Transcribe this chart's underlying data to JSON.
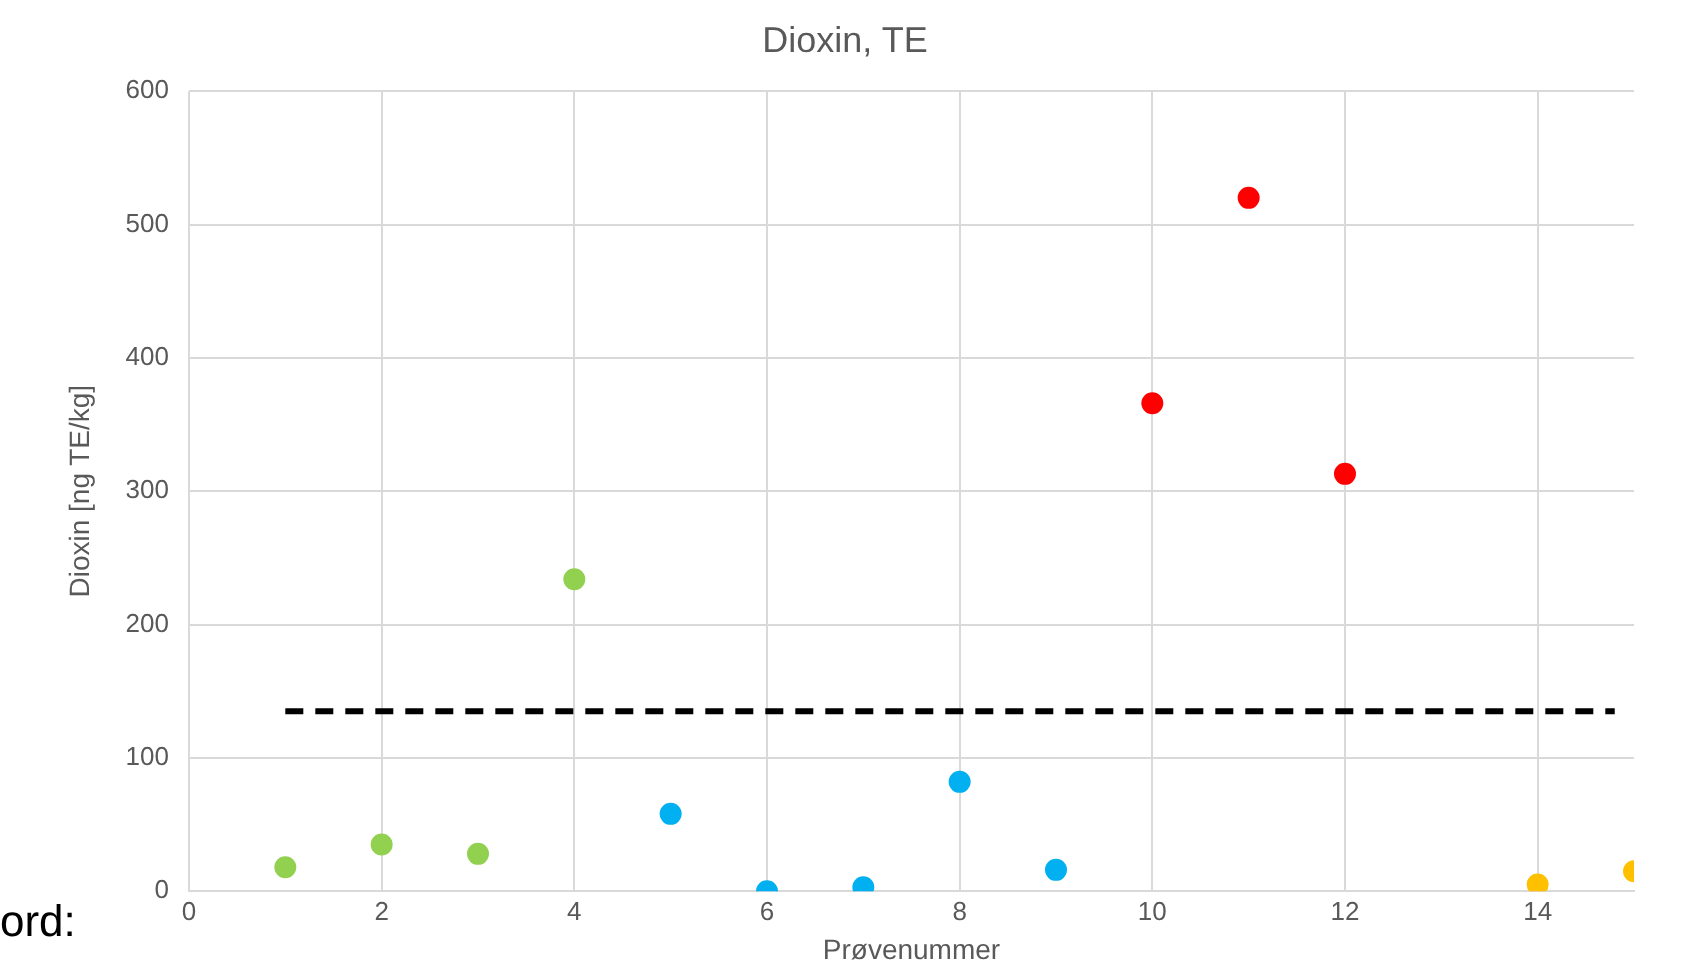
{
  "chart_data": {
    "type": "scatter",
    "title": "Dioxin, TE",
    "xlabel": "Prøvenummer",
    "ylabel": "Dioxin [ng TE/kg]",
    "xlim": [
      0,
      15
    ],
    "xticks": [
      0,
      2,
      4,
      6,
      8,
      10,
      12,
      14
    ],
    "ylim": [
      0,
      600
    ],
    "yticks": [
      0,
      100,
      200,
      300,
      400,
      500,
      600
    ],
    "grid": true,
    "legend": false,
    "marker": "circle",
    "annotations": [
      "ord:"
    ],
    "series": [
      {
        "color": "#92d050",
        "x": [
          1,
          2,
          3,
          4
        ],
        "values": [
          18,
          35,
          28,
          234
        ]
      },
      {
        "color": "#00b0f0",
        "x": [
          5,
          6,
          7,
          8,
          9
        ],
        "values": [
          58,
          0,
          3,
          82,
          16
        ]
      },
      {
        "color": "#ff0000",
        "x": [
          10,
          11,
          12
        ],
        "values": [
          366,
          520,
          313
        ]
      },
      {
        "color": "#ffc000",
        "x": [
          14,
          15
        ],
        "values": [
          5,
          15
        ]
      },
      {
        "type": "line",
        "color": "#000000",
        "line_style": "dashed",
        "marker": "none",
        "x": [
          1,
          14.8
        ],
        "values": [
          135,
          135
        ]
      }
    ]
  }
}
